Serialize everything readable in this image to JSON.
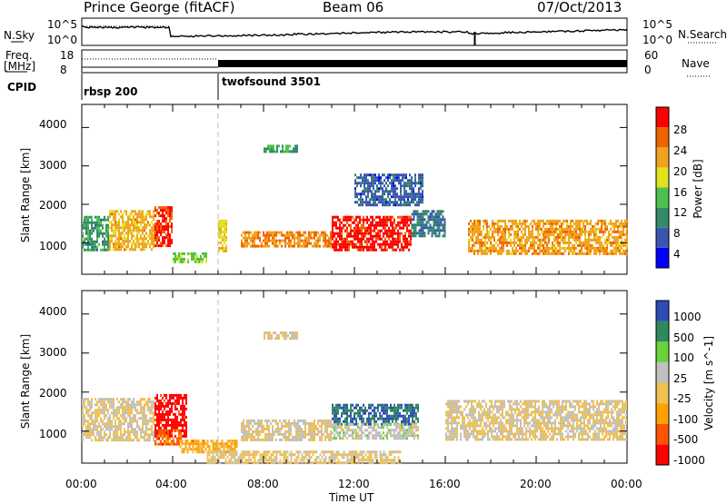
{
  "header": {
    "station": "Prince George (fitACF)",
    "beam": "Beam 06",
    "date": "07/Oct/2013"
  },
  "panels": {
    "nsky_label": "N.Sky",
    "nsky_ticks": [
      "10^5",
      "10^0"
    ],
    "nsearch_label": "N.Search",
    "nsearch_ticks": [
      "10^5",
      "10^0"
    ],
    "freq_label": "Freq.",
    "freq_unit": "[MHz]",
    "freq_ticks": [
      "18",
      "8"
    ],
    "nave_label": "Nave",
    "nave_ticks": [
      "60",
      "0"
    ],
    "cpid_label": "CPID",
    "cpid_modes": [
      {
        "name": "rbsp 200",
        "start_hour": 0,
        "end_hour": 6
      },
      {
        "name": "twofsound 3501",
        "start_hour": 6,
        "end_hour": 24
      }
    ]
  },
  "axes": {
    "y_label": "Slant Range [km]",
    "x_label": "Time UT",
    "y_ticks": [
      "1000",
      "2000",
      "3000",
      "4000"
    ],
    "x_ticks": [
      "00:00",
      "04:00",
      "08:00",
      "12:00",
      "16:00",
      "20:00",
      "00:00"
    ]
  },
  "colors": {
    "power": [
      "#0000ff",
      "#3a55b0",
      "#338a66",
      "#4cc24c",
      "#dfe21d",
      "#f0a31c",
      "#f06400",
      "#ff0000"
    ],
    "velocity": [
      "#ff0000",
      "#ff5500",
      "#ffa000",
      "#f0c050",
      "#c0c0c0",
      "#6ad23a",
      "#2f8a5a",
      "#2d4db5"
    ]
  },
  "chart_data": [
    {
      "type": "heatmap",
      "title": "",
      "xlabel": "Time UT",
      "ylabel": "Slant Range [km]",
      "xlim": [
        0,
        24
      ],
      "ylim": [
        180,
        4600
      ],
      "colorbar_label": "Power [dB]",
      "colorbar_ticks": [
        "4",
        "8",
        "12",
        "16",
        "20",
        "24",
        "28"
      ],
      "colorbar_range": [
        0,
        30
      ],
      "regions": [
        {
          "t0": 0.0,
          "t1": 1.2,
          "r0": 800,
          "r1": 1700,
          "value": 10
        },
        {
          "t0": 1.2,
          "t1": 3.2,
          "r0": 800,
          "r1": 1850,
          "value": 20
        },
        {
          "t0": 3.2,
          "t1": 4.0,
          "r0": 900,
          "r1": 1950,
          "value": 27
        },
        {
          "t0": 4.0,
          "t1": 5.5,
          "r0": 500,
          "r1": 750,
          "value": 14
        },
        {
          "t0": 6.0,
          "t1": 6.4,
          "r0": 800,
          "r1": 1600,
          "value": 18
        },
        {
          "t0": 7.0,
          "t1": 11.0,
          "r0": 900,
          "r1": 1300,
          "value": 22
        },
        {
          "t0": 11.0,
          "t1": 14.5,
          "r0": 800,
          "r1": 1700,
          "value": 28
        },
        {
          "t0": 14.5,
          "t1": 16.0,
          "r0": 1200,
          "r1": 1850,
          "value": 8
        },
        {
          "t0": 17.0,
          "t1": 24.0,
          "r0": 700,
          "r1": 1600,
          "value": 21
        },
        {
          "t0": 12.0,
          "t1": 15.0,
          "r0": 2000,
          "r1": 2800,
          "value": 6
        },
        {
          "t0": 8.0,
          "t1": 9.5,
          "r0": 3400,
          "r1": 3550,
          "value": 11
        }
      ]
    },
    {
      "type": "heatmap",
      "title": "",
      "xlabel": "Time UT",
      "ylabel": "Slant Range [km]",
      "xlim": [
        0,
        24
      ],
      "ylim": [
        180,
        4600
      ],
      "colorbar_label": "Velocity [m s^-1]",
      "colorbar_ticks": [
        "-1000",
        "-500",
        "-100",
        "-25",
        "25",
        "100",
        "500",
        "1000"
      ],
      "colorbar_range": [
        -1200,
        1200
      ],
      "regions": [
        {
          "t0": 0.0,
          "t1": 3.2,
          "r0": 800,
          "r1": 1850,
          "value": 0
        },
        {
          "t0": 3.2,
          "t1": 4.6,
          "r0": 900,
          "r1": 1950,
          "value": -1100
        },
        {
          "t0": 3.2,
          "t1": 4.4,
          "r0": 700,
          "r1": 1050,
          "value": -700
        },
        {
          "t0": 4.3,
          "t1": 6.8,
          "r0": 450,
          "r1": 780,
          "value": -400
        },
        {
          "t0": 7.0,
          "t1": 11.0,
          "r0": 800,
          "r1": 1300,
          "value": 0
        },
        {
          "t0": 11.0,
          "t1": 14.8,
          "r0": 1200,
          "r1": 1700,
          "value": 900
        },
        {
          "t0": 11.0,
          "t1": 14.8,
          "r0": 800,
          "r1": 1200,
          "value": 150
        },
        {
          "t0": 16.0,
          "t1": 24.0,
          "r0": 800,
          "r1": 1800,
          "value": 0
        },
        {
          "t0": 5.5,
          "t1": 14.0,
          "r0": 200,
          "r1": 500,
          "value": -60
        },
        {
          "t0": 8.0,
          "t1": 9.5,
          "r0": 3400,
          "r1": 3550,
          "value": -20
        }
      ]
    }
  ]
}
